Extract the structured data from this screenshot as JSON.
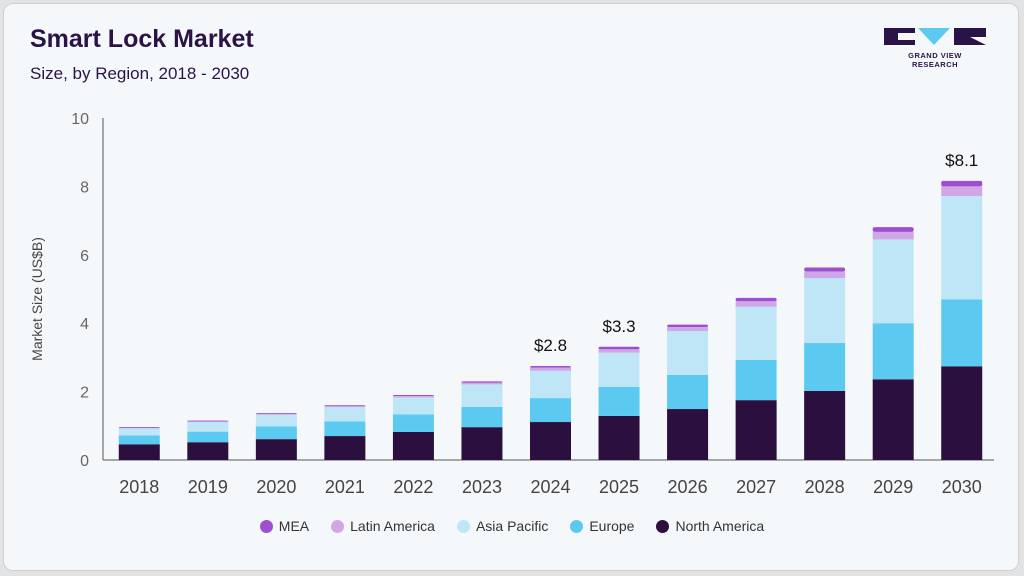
{
  "header": {
    "title": "Smart Lock Market",
    "subtitle": "Size, by Region, 2018 - 2030"
  },
  "logo": {
    "text": "GRAND VIEW RESEARCH"
  },
  "chart_data": {
    "type": "bar",
    "stacked": true,
    "categories": [
      "2018",
      "2019",
      "2020",
      "2021",
      "2022",
      "2023",
      "2024",
      "2025",
      "2026",
      "2027",
      "2028",
      "2029",
      "2030"
    ],
    "ylabel": "Market Size (US$B)",
    "xlabel": "",
    "ylim": [
      0,
      10
    ],
    "yticks": [
      0,
      2,
      4,
      6,
      8,
      10
    ],
    "grid": false,
    "legend_position": "bottom",
    "series": [
      {
        "name": "North America",
        "color": "#2b0f3e",
        "values": [
          0.46,
          0.52,
          0.61,
          0.7,
          0.82,
          0.96,
          1.11,
          1.29,
          1.49,
          1.75,
          2.02,
          2.36,
          2.74
        ]
      },
      {
        "name": "Europe",
        "color": "#5ccaf0",
        "values": [
          0.26,
          0.31,
          0.37,
          0.43,
          0.51,
          0.59,
          0.7,
          0.85,
          1.0,
          1.18,
          1.4,
          1.64,
          1.96
        ]
      },
      {
        "name": "Asia Pacific",
        "color": "#bfe6f7",
        "values": [
          0.22,
          0.29,
          0.35,
          0.42,
          0.5,
          0.66,
          0.8,
          1.0,
          1.28,
          1.55,
          1.9,
          2.45,
          3.02
        ]
      },
      {
        "name": "Latin America",
        "color": "#d1a6e6",
        "values": [
          0.01,
          0.02,
          0.02,
          0.03,
          0.04,
          0.05,
          0.09,
          0.1,
          0.12,
          0.16,
          0.19,
          0.22,
          0.28
        ]
      },
      {
        "name": "MEA",
        "color": "#9d4fd0",
        "values": [
          0.01,
          0.01,
          0.02,
          0.02,
          0.03,
          0.04,
          0.05,
          0.07,
          0.07,
          0.1,
          0.12,
          0.14,
          0.16
        ]
      }
    ],
    "annotations": [
      {
        "category": "2024",
        "label": "$2.8",
        "value": 2.8
      },
      {
        "category": "2025",
        "label": "$3.3",
        "value": 3.3
      },
      {
        "category": "2030",
        "label": "$8.1",
        "value": 8.1
      }
    ]
  }
}
